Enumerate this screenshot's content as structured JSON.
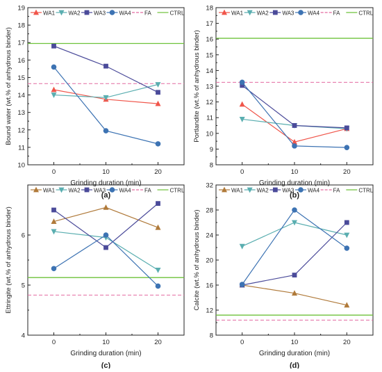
{
  "legend_entries": [
    "WA1",
    "WA2",
    "WA3",
    "WA4",
    "FA",
    "CTRL"
  ],
  "colors": {
    "WA1_ab": "#f0554a",
    "WA1_cd": "#b07a3a",
    "WA2": "#5aaeb0",
    "WA3": "#4b4b9a",
    "WA4": "#3d73b3",
    "FA": "#e46aa0",
    "CTRL": "#6ec23a"
  },
  "chart_data": [
    {
      "panel_label": "(a)",
      "type": "line",
      "ylabel": "Bound water (wt.% of anhydrous binder)",
      "xlabel": "Grinding duration (min)",
      "x": [
        0,
        10,
        20
      ],
      "xticks": [
        "0",
        "10",
        "20"
      ],
      "xlim": [
        -5,
        25
      ],
      "ylim": [
        10,
        19
      ],
      "yticks": [
        10,
        11,
        12,
        13,
        14,
        15,
        16,
        17,
        18,
        19
      ],
      "series": [
        {
          "name": "WA1",
          "marker": "triangle-up",
          "values": [
            14.3,
            13.75,
            13.5
          ]
        },
        {
          "name": "WA2",
          "marker": "triangle-down",
          "values": [
            14.0,
            13.85,
            14.6
          ]
        },
        {
          "name": "WA3",
          "marker": "square",
          "values": [
            16.8,
            15.65,
            14.15
          ]
        },
        {
          "name": "WA4",
          "marker": "circle",
          "values": [
            15.6,
            11.95,
            11.2
          ]
        }
      ],
      "reference_lines": [
        {
          "name": "FA",
          "style": "dashed",
          "value": 14.65
        },
        {
          "name": "CTRL",
          "style": "solid",
          "value": 16.95
        }
      ]
    },
    {
      "panel_label": "(b)",
      "type": "line",
      "ylabel": "Portlandite (wt.% of anhydrous binder)",
      "xlabel": "Grinding duration (min)",
      "x": [
        0,
        10,
        20
      ],
      "xticks": [
        "0",
        "10",
        "20"
      ],
      "xlim": [
        -5,
        25
      ],
      "ylim": [
        8,
        18
      ],
      "yticks": [
        8,
        9,
        10,
        11,
        12,
        13,
        14,
        15,
        16,
        17,
        18
      ],
      "series": [
        {
          "name": "WA1",
          "marker": "triangle-up",
          "values": [
            11.85,
            9.45,
            10.3
          ]
        },
        {
          "name": "WA2",
          "marker": "triangle-down",
          "values": [
            10.9,
            10.5,
            10.3
          ]
        },
        {
          "name": "WA3",
          "marker": "square",
          "values": [
            13.05,
            10.5,
            10.35
          ]
        },
        {
          "name": "WA4",
          "marker": "circle",
          "values": [
            13.25,
            9.2,
            9.1
          ]
        }
      ],
      "reference_lines": [
        {
          "name": "FA",
          "style": "dashed",
          "value": 13.25
        },
        {
          "name": "CTRL",
          "style": "solid",
          "value": 16.05
        }
      ]
    },
    {
      "panel_label": "(c)",
      "type": "line",
      "ylabel": "Ettringite (wt.% of anhydrous binder)",
      "xlabel": "Grinding duration (min)",
      "x": [
        0,
        10,
        20
      ],
      "xticks": [
        "0",
        "10",
        "20"
      ],
      "xlim": [
        -5,
        25
      ],
      "ylim": [
        4,
        7
      ],
      "yticks": [
        4,
        5,
        6
      ],
      "series": [
        {
          "name": "WA1",
          "marker": "triangle-up",
          "values": [
            6.27,
            6.55,
            6.15
          ]
        },
        {
          "name": "WA2",
          "marker": "triangle-down",
          "values": [
            6.07,
            5.95,
            5.3
          ]
        },
        {
          "name": "WA3",
          "marker": "square",
          "values": [
            6.5,
            5.75,
            6.63
          ]
        },
        {
          "name": "WA4",
          "marker": "circle",
          "values": [
            5.33,
            6.0,
            4.98
          ]
        }
      ],
      "reference_lines": [
        {
          "name": "FA",
          "style": "dashed",
          "value": 4.8
        },
        {
          "name": "CTRL",
          "style": "solid",
          "value": 5.15
        }
      ]
    },
    {
      "panel_label": "(d)",
      "type": "line",
      "ylabel": "Calcite (wt.% of anhydrous binder)",
      "xlabel": "Grinding duration (min)",
      "x": [
        0,
        10,
        20
      ],
      "xticks": [
        "0",
        "10",
        "20"
      ],
      "xlim": [
        -5,
        25
      ],
      "ylim": [
        8,
        32
      ],
      "yticks": [
        8,
        12,
        16,
        20,
        24,
        28,
        32
      ],
      "series": [
        {
          "name": "WA1",
          "marker": "triangle-up",
          "values": [
            16.0,
            14.7,
            12.8
          ]
        },
        {
          "name": "WA2",
          "marker": "triangle-down",
          "values": [
            22.2,
            26.0,
            24.0
          ]
        },
        {
          "name": "WA3",
          "marker": "square",
          "values": [
            16.0,
            17.6,
            26.0
          ]
        },
        {
          "name": "WA4",
          "marker": "circle",
          "values": [
            16.1,
            28.0,
            21.9
          ]
        }
      ],
      "reference_lines": [
        {
          "name": "FA",
          "style": "dashed",
          "value": 10.4
        },
        {
          "name": "CTRL",
          "style": "solid",
          "value": 11.2
        }
      ]
    }
  ]
}
